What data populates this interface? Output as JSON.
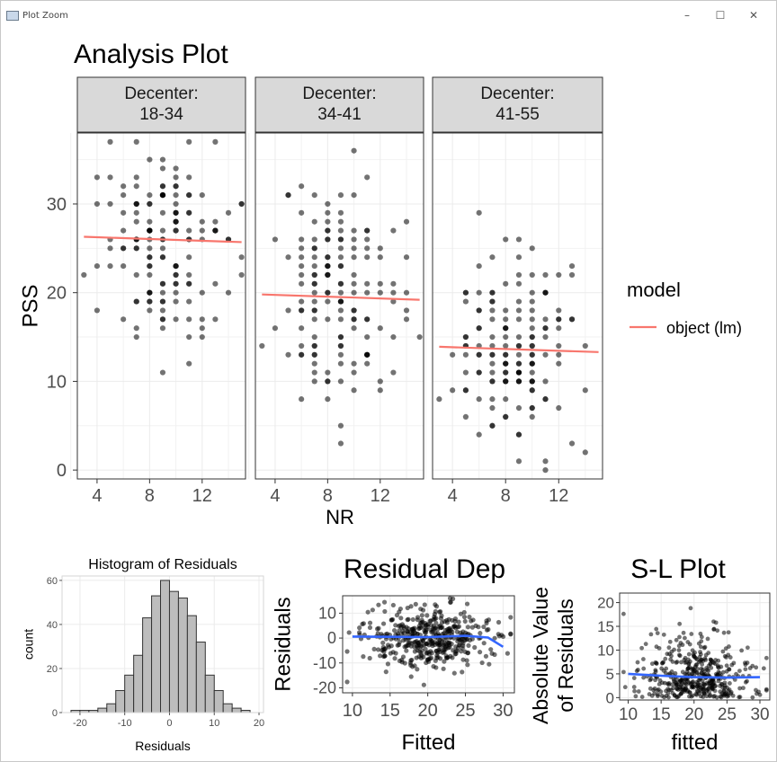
{
  "window": {
    "title": "Plot Zoom",
    "controls": [
      "–",
      "☐",
      "✕"
    ]
  },
  "chart_data": [
    {
      "type": "scatter",
      "title": "Analysis Plot",
      "xlabel": "NR",
      "ylabel": "PSS",
      "facet_label": "Decenter:",
      "facets": [
        {
          "name": "18-34",
          "fit": [
            [
              3,
              26.3
            ],
            [
              15,
              25.7
            ]
          ]
        },
        {
          "name": "34-41",
          "fit": [
            [
              3,
              19.8
            ],
            [
              15,
              19.2
            ]
          ]
        },
        {
          "name": "41-55",
          "fit": [
            [
              3,
              13.9
            ],
            [
              15,
              13.3
            ]
          ]
        }
      ],
      "xticks": [
        "4",
        "8",
        "12"
      ],
      "xlim": [
        2.5,
        15.3
      ],
      "yticks": [
        "0",
        "10",
        "20",
        "30"
      ],
      "ylim": [
        -1,
        38
      ],
      "legend": {
        "title": "model",
        "entries": [
          "object (lm)"
        ],
        "position": "right",
        "color": "#f8766d"
      },
      "grid": true
    },
    {
      "type": "bar",
      "title": "Histogram of Residuals",
      "xlabel": "Residuals",
      "ylabel": "count",
      "bin_width": 2,
      "bin_centers": [
        -21,
        -19,
        -17,
        -15,
        -13,
        -11,
        -9,
        -7,
        -5,
        -3,
        -1,
        1,
        3,
        5,
        7,
        9,
        11,
        13,
        15,
        17
      ],
      "values": [
        1,
        1,
        1,
        2,
        4,
        10,
        17,
        26,
        43,
        53,
        60,
        55,
        52,
        44,
        32,
        17,
        10,
        4,
        2,
        1
      ],
      "xticks": [
        "-20",
        "-10",
        "0",
        "10",
        "20"
      ],
      "xlim": [
        -24,
        21
      ],
      "yticks": [
        "0",
        "20",
        "40",
        "60"
      ],
      "ylim": [
        0,
        62
      ],
      "grid": true
    },
    {
      "type": "scatter",
      "title": "Residual Dep",
      "xlabel": "Fitted",
      "ylabel": "Residuals",
      "xticks": [
        "10",
        "15",
        "20",
        "25",
        "30"
      ],
      "xlim": [
        8.7,
        31.5
      ],
      "yticks": [
        "10",
        "0",
        "-10",
        "-20"
      ],
      "ylim": [
        -22,
        17
      ],
      "smooth": [
        [
          10,
          0.6
        ],
        [
          15,
          0.5
        ],
        [
          20,
          0.4
        ],
        [
          25,
          0.9
        ],
        [
          28,
          0.2
        ],
        [
          30,
          -3.5
        ]
      ],
      "smooth_color": "#3366ff",
      "grid": true
    },
    {
      "type": "scatter",
      "title": "S-L Plot",
      "xlabel": "fitted",
      "ylabel": "Absolute Value of Residuals",
      "xticks": [
        "10",
        "15",
        "20",
        "25",
        "30"
      ],
      "xlim": [
        8.7,
        31.5
      ],
      "yticks": [
        "0",
        "5",
        "10",
        "15",
        "20"
      ],
      "ylim": [
        -0.5,
        22
      ],
      "smooth": [
        [
          10,
          5.0
        ],
        [
          15,
          4.6
        ],
        [
          20,
          4.3
        ],
        [
          25,
          4.2
        ],
        [
          30,
          4.3
        ]
      ],
      "smooth_color": "#3366ff",
      "grid": true
    }
  ]
}
